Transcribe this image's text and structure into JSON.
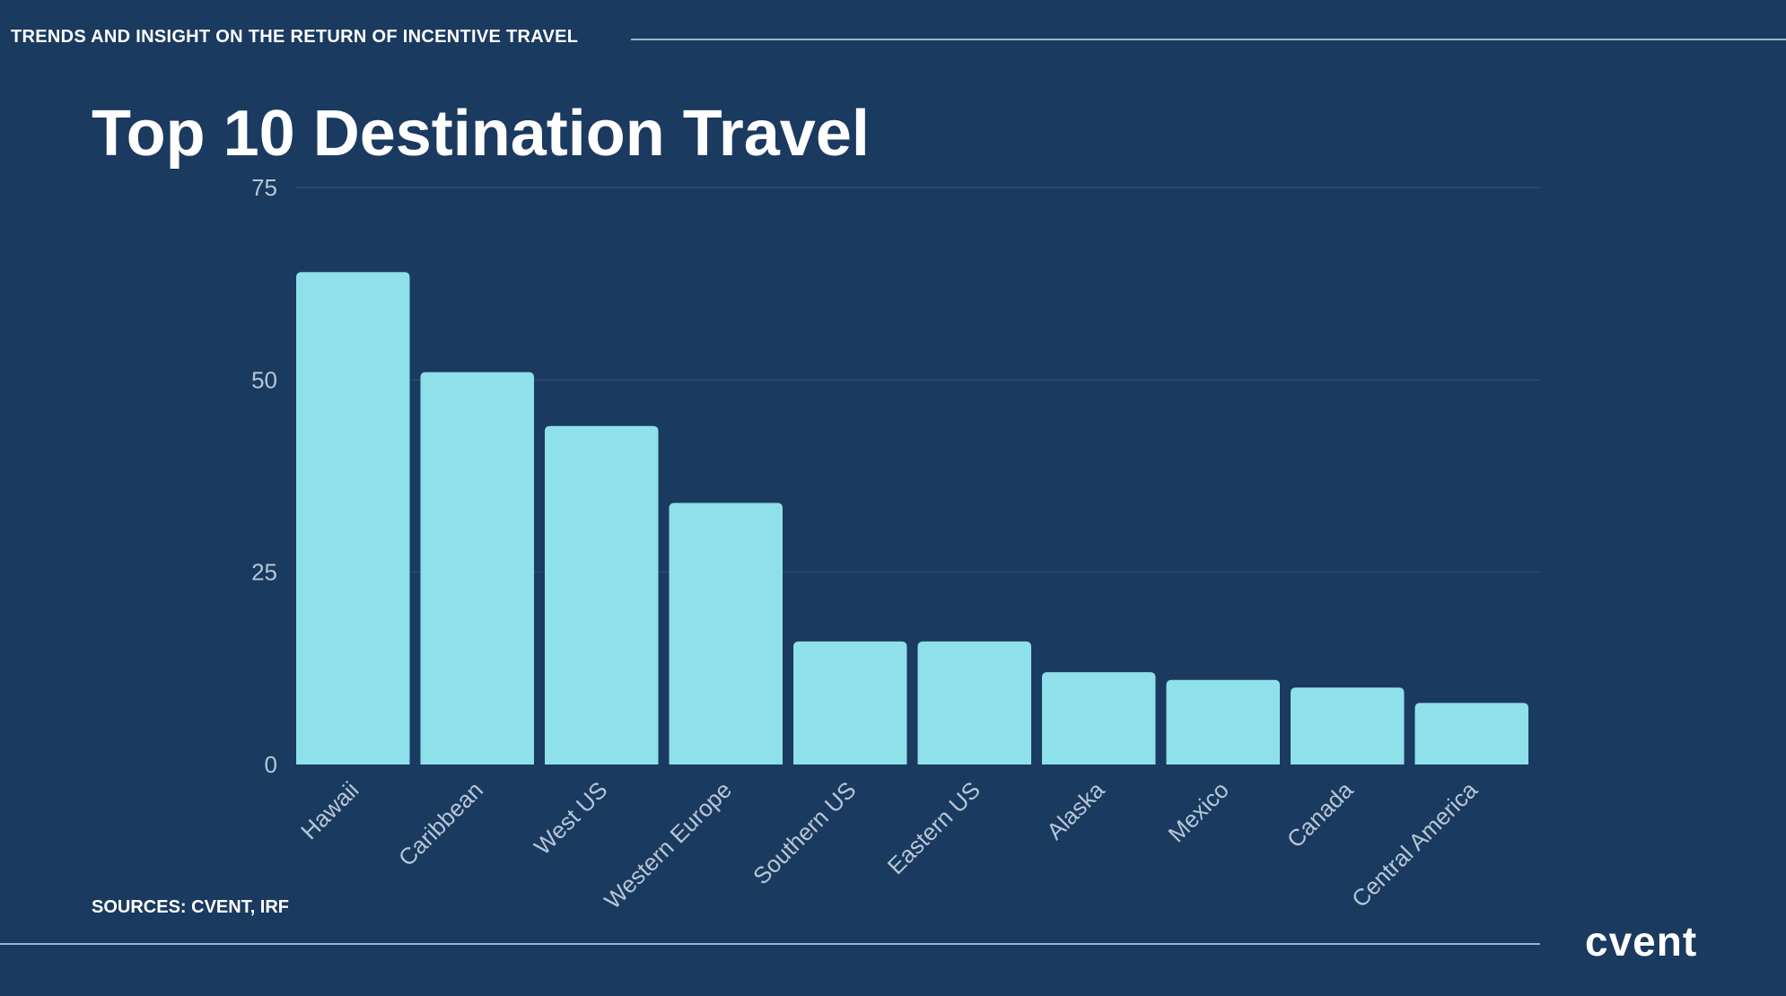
{
  "header": {
    "title": "TRENDS AND INSIGHT ON THE RETURN OF INCENTIVE TRAVEL"
  },
  "page": {
    "title": "Top 10 Destination Travel",
    "sources": "SOURCES: CVENT, IRF",
    "logo_text": "cvent"
  },
  "colors": {
    "background": "#1a3a5f",
    "bar": "#8ee0ea",
    "grid": "#2c4c70",
    "tick_text": "#b7c6d8"
  },
  "chart_data": {
    "type": "bar",
    "title": "Top 10 Destination Travel",
    "xlabel": "",
    "ylabel": "",
    "categories": [
      "Hawaii",
      "Caribbean",
      "West US",
      "Western Europe",
      "Southern US",
      "Eastern US",
      "Alaska",
      "Mexico",
      "Canada",
      "Central America"
    ],
    "values": [
      64,
      51,
      44,
      34,
      16,
      16,
      12,
      11,
      10,
      8
    ],
    "ylim": [
      0,
      75
    ],
    "yticks": [
      0,
      25,
      50,
      75
    ],
    "grid": true,
    "legend": "none"
  }
}
